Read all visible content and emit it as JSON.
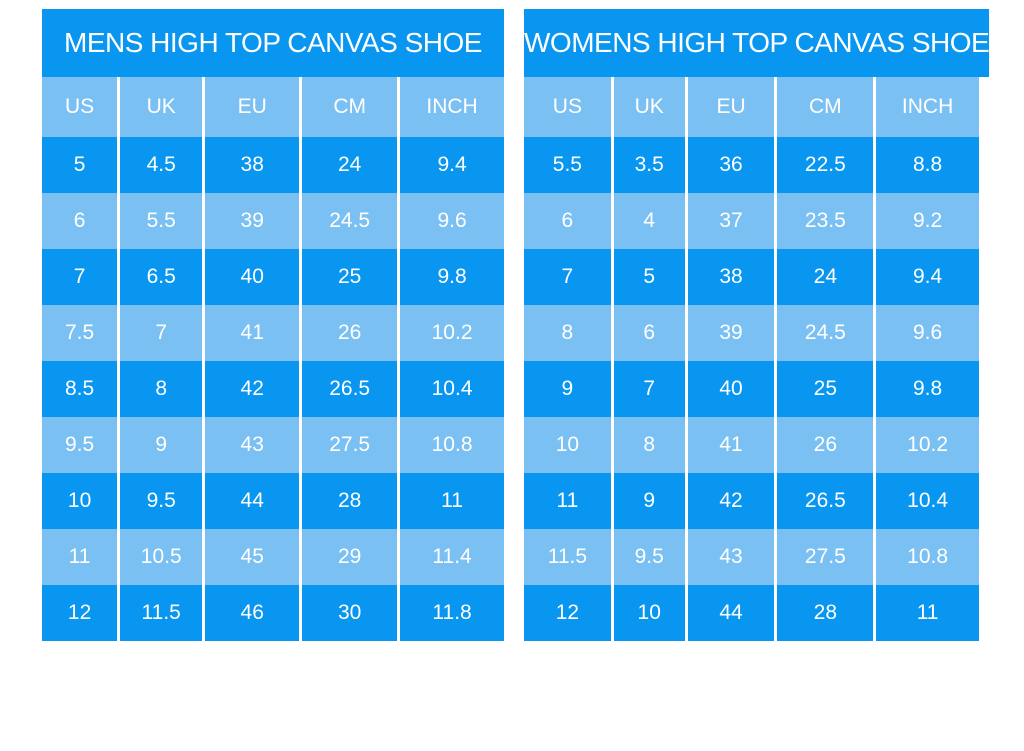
{
  "page": {
    "background": "#ffffff"
  },
  "colors": {
    "row_dark_blue": "#0996F1",
    "row_light_blue": "#7BC0F3",
    "divider_white": "#ffffff",
    "text_white": "#ffffff"
  },
  "chart_data": [
    {
      "type": "table",
      "title": "MENS HIGH TOP CANVAS SHOE",
      "columns": [
        "US",
        "UK",
        "EU",
        "CM",
        "INCH"
      ],
      "rows": [
        [
          "5",
          "4.5",
          "38",
          "24",
          "9.4"
        ],
        [
          "6",
          "5.5",
          "39",
          "24.5",
          "9.6"
        ],
        [
          "7",
          "6.5",
          "40",
          "25",
          "9.8"
        ],
        [
          "7.5",
          "7",
          "41",
          "26",
          "10.2"
        ],
        [
          "8.5",
          "8",
          "42",
          "26.5",
          "10.4"
        ],
        [
          "9.5",
          "9",
          "43",
          "27.5",
          "10.8"
        ],
        [
          "10",
          "9.5",
          "44",
          "28",
          "11"
        ],
        [
          "11",
          "10.5",
          "45",
          "29",
          "11.4"
        ],
        [
          "12",
          "11.5",
          "46",
          "30",
          "11.8"
        ]
      ]
    },
    {
      "type": "table",
      "title": "WOMENS HIGH TOP CANVAS SHOE",
      "columns": [
        "US",
        "UK",
        "EU",
        "CM",
        "INCH"
      ],
      "rows": [
        [
          "5.5",
          "3.5",
          "36",
          "22.5",
          "8.8"
        ],
        [
          "6",
          "4",
          "37",
          "23.5",
          "9.2"
        ],
        [
          "7",
          "5",
          "38",
          "24",
          "9.4"
        ],
        [
          "8",
          "6",
          "39",
          "24.5",
          "9.6"
        ],
        [
          "9",
          "7",
          "40",
          "25",
          "9.8"
        ],
        [
          "10",
          "8",
          "41",
          "26",
          "10.2"
        ],
        [
          "11",
          "9",
          "42",
          "26.5",
          "10.4"
        ],
        [
          "11.5",
          "9.5",
          "43",
          "27.5",
          "10.8"
        ],
        [
          "12",
          "10",
          "44",
          "28",
          "11"
        ]
      ]
    }
  ]
}
